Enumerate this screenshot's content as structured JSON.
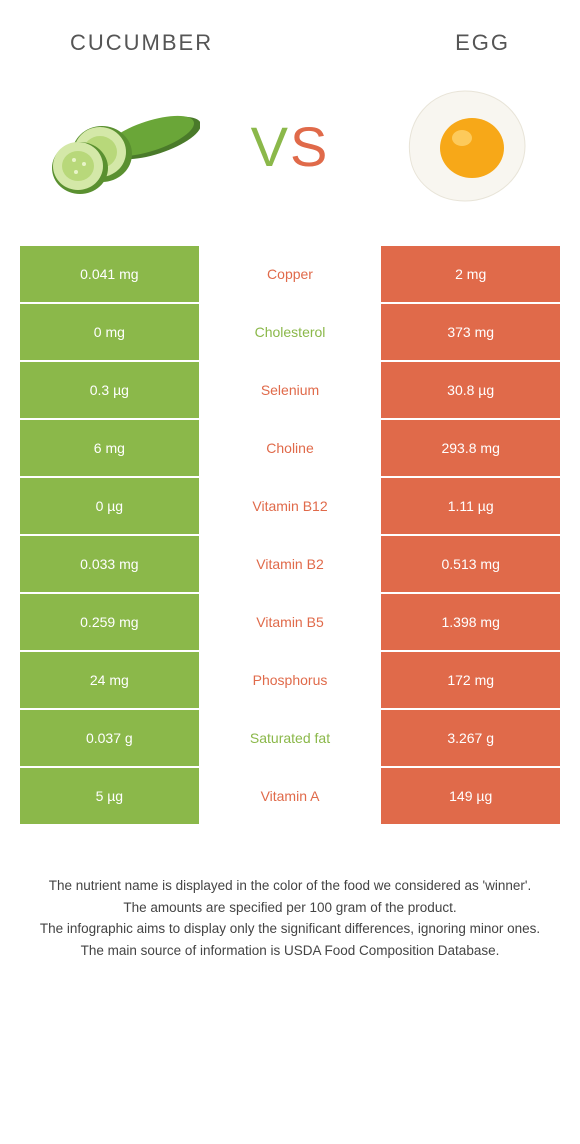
{
  "colors": {
    "cucumber": "#8bb84a",
    "egg": "#e06a4a",
    "text": "#555555",
    "footer": "#444444",
    "white": "#ffffff"
  },
  "header": {
    "left": "CUCUMBER",
    "right": "EGG"
  },
  "vs": {
    "v": "V",
    "s": "S"
  },
  "rows": [
    {
      "left": "0.041 mg",
      "label": "Copper",
      "right": "2 mg",
      "winner": "egg"
    },
    {
      "left": "0 mg",
      "label": "Cholesterol",
      "right": "373 mg",
      "winner": "cucumber"
    },
    {
      "left": "0.3 µg",
      "label": "Selenium",
      "right": "30.8 µg",
      "winner": "egg"
    },
    {
      "left": "6 mg",
      "label": "Choline",
      "right": "293.8 mg",
      "winner": "egg"
    },
    {
      "left": "0 µg",
      "label": "Vitamin B12",
      "right": "1.11 µg",
      "winner": "egg"
    },
    {
      "left": "0.033 mg",
      "label": "Vitamin B2",
      "right": "0.513 mg",
      "winner": "egg"
    },
    {
      "left": "0.259 mg",
      "label": "Vitamin B5",
      "right": "1.398 mg",
      "winner": "egg"
    },
    {
      "left": "24 mg",
      "label": "Phosphorus",
      "right": "172 mg",
      "winner": "egg"
    },
    {
      "left": "0.037 g",
      "label": "Saturated fat",
      "right": "3.267 g",
      "winner": "cucumber"
    },
    {
      "left": "5 µg",
      "label": "Vitamin A",
      "right": "149 µg",
      "winner": "egg"
    }
  ],
  "footer": {
    "line1": "The nutrient name is displayed in the color of the food we considered as 'winner'.",
    "line2": "The amounts are specified per 100 gram of the product.",
    "line3": "The infographic aims to display only the significant differences, ignoring minor ones.",
    "line4": "The main source of information is USDA Food Composition Database."
  }
}
